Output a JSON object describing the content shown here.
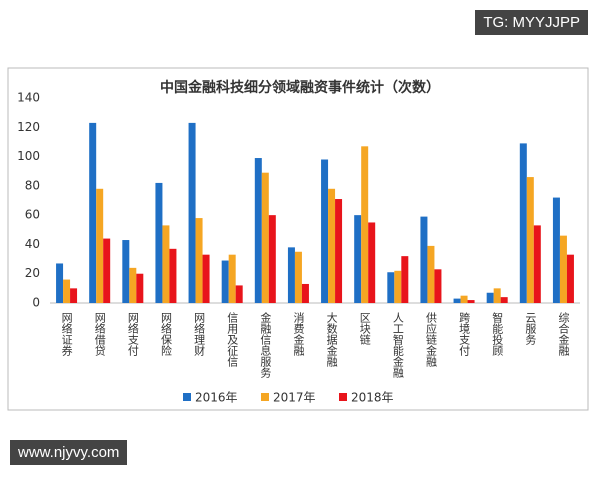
{
  "chart_data": {
    "type": "bar",
    "title": "中国金融科技细分领域融资事件统计（次数）",
    "categories": [
      "网络证券",
      "网络借贷",
      "网络支付",
      "网络保险",
      "网络理财",
      "信用及征信",
      "金融信息服务",
      "消费金融",
      "大数据金融",
      "区块链",
      "人工智能金融",
      "供应链金融",
      "跨境支付",
      "智能投顾",
      "云服务",
      "综合金融"
    ],
    "series": [
      {
        "name": "2016年",
        "color": "#1f6fc5",
        "values": [
          27,
          123,
          43,
          82,
          123,
          29,
          99,
          38,
          98,
          60,
          21,
          59,
          3,
          7,
          109,
          72
        ]
      },
      {
        "name": "2017年",
        "color": "#f5a623",
        "values": [
          16,
          78,
          24,
          53,
          58,
          33,
          89,
          35,
          78,
          107,
          22,
          39,
          5,
          10,
          86,
          46
        ]
      },
      {
        "name": "2018年",
        "color": "#e8141b",
        "values": [
          10,
          44,
          20,
          37,
          33,
          12,
          60,
          13,
          71,
          55,
          32,
          23,
          2,
          4,
          53,
          33
        ]
      }
    ],
    "ylim": [
      0,
      140
    ],
    "yticks": [
      0,
      20,
      40,
      60,
      80,
      100,
      120,
      140
    ],
    "grid": false,
    "legend": "bottom"
  },
  "watermarks": [
    "TG: MYYJJPP",
    "www.njyvy.com"
  ]
}
